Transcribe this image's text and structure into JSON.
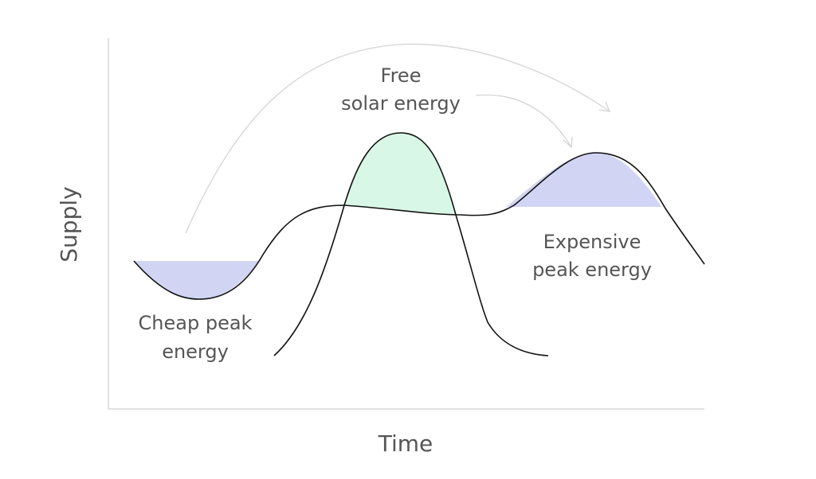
{
  "axes": {
    "x_label": "Time",
    "y_label": "Supply"
  },
  "annotations": {
    "free_solar_line1": "Free",
    "free_solar_line2": "solar energy",
    "expensive_line1": "Expensive",
    "expensive_line2": "peak energy",
    "cheap_line1": "Cheap peak",
    "cheap_line2": "energy"
  },
  "colors": {
    "shift_fill": "#d1d4f3",
    "solar_fill": "#d8f7e6",
    "curve_stroke": "#111111",
    "arrow_stroke": "#d4d4d4",
    "axis_stroke": "#d9d9d9",
    "text": "#555555"
  }
}
